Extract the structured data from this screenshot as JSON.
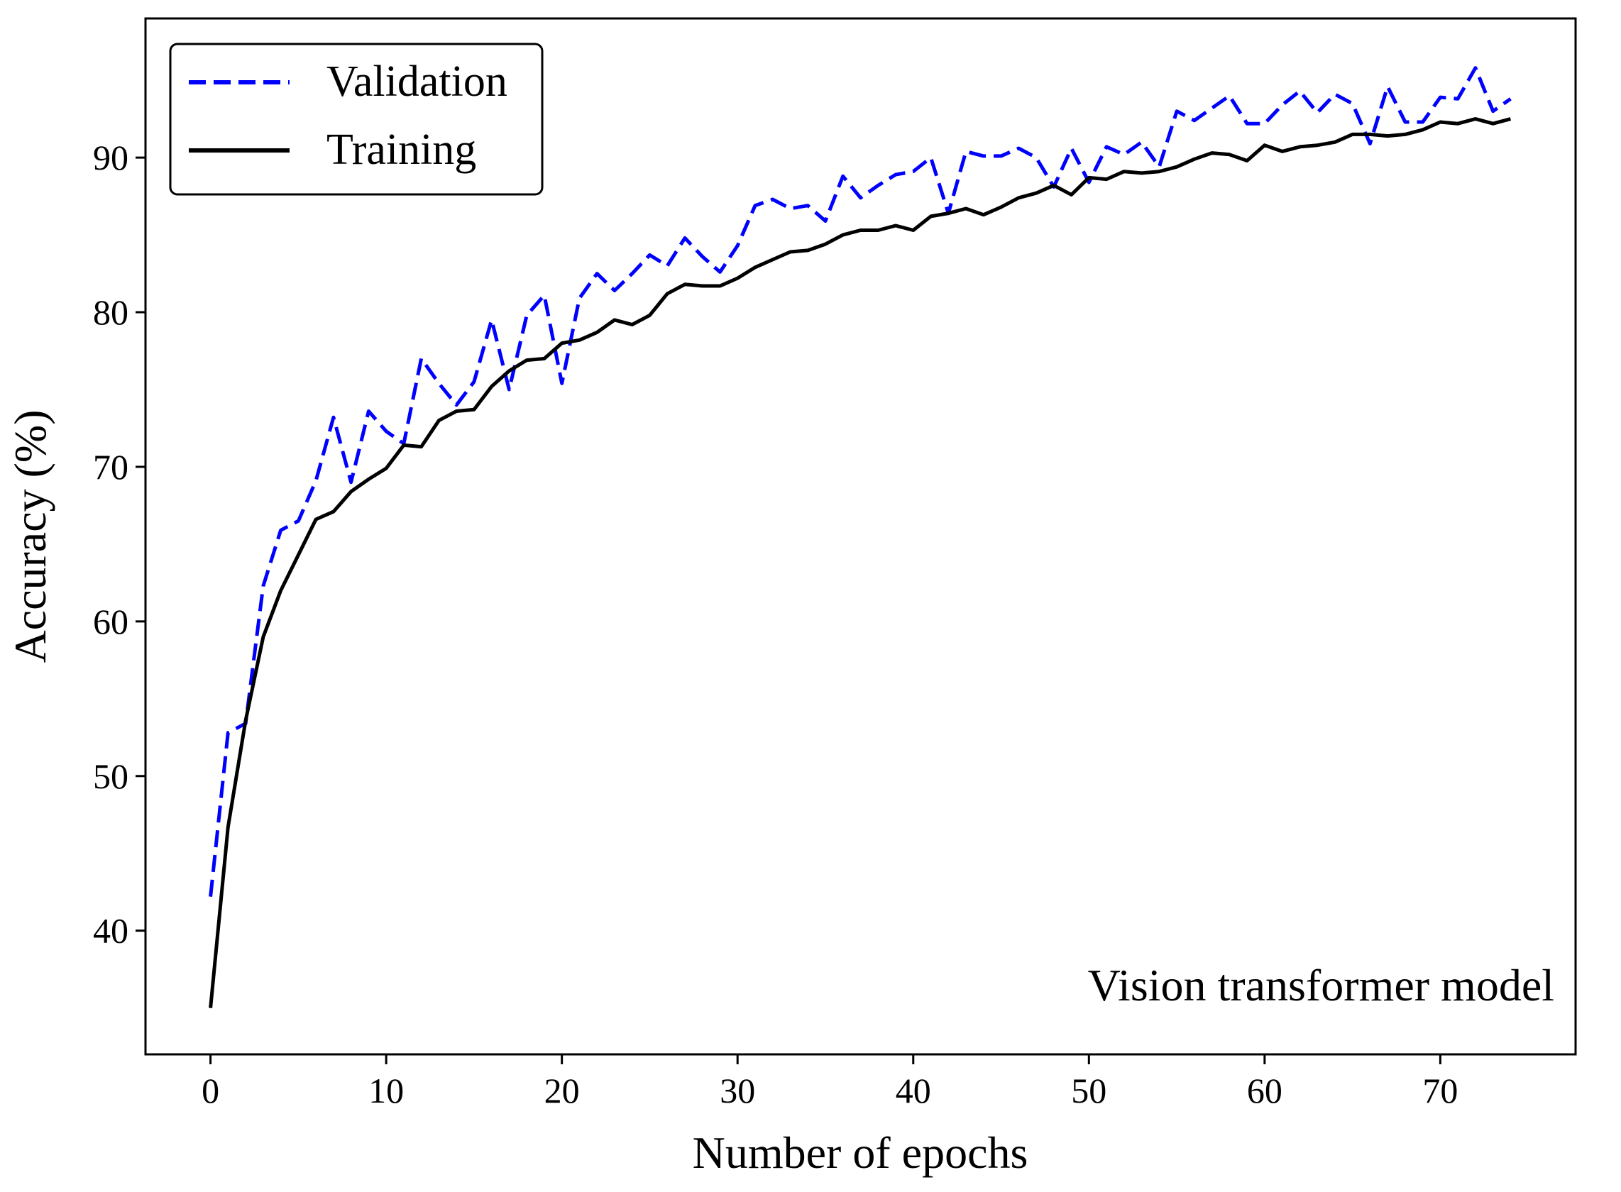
{
  "chart_data": {
    "type": "line",
    "title": "",
    "annotation": "Vision transformer model",
    "xlabel": "Number of epochs",
    "ylabel": "Accuracy (%)",
    "xlim": [
      -3.7,
      77.7
    ],
    "ylim": [
      32.0,
      99.0
    ],
    "xticks": [
      0,
      10,
      20,
      30,
      40,
      50,
      60,
      70
    ],
    "yticks": [
      40,
      50,
      60,
      70,
      80,
      90
    ],
    "grid": false,
    "legend_position": "top-left",
    "x": [
      0,
      1,
      2,
      3,
      4,
      5,
      6,
      7,
      8,
      9,
      10,
      11,
      12,
      13,
      14,
      15,
      16,
      17,
      18,
      19,
      20,
      21,
      22,
      23,
      24,
      25,
      26,
      27,
      28,
      29,
      30,
      31,
      32,
      33,
      34,
      35,
      36,
      37,
      38,
      39,
      40,
      41,
      42,
      43,
      44,
      45,
      46,
      47,
      48,
      49,
      50,
      51,
      52,
      53,
      54,
      55,
      56,
      57,
      58,
      59,
      60,
      61,
      62,
      63,
      64,
      65,
      66,
      67,
      68,
      69,
      70,
      71,
      72,
      73,
      74
    ],
    "series": [
      {
        "name": "Validation",
        "color": "#0000ff",
        "style": "dashed",
        "values": [
          42.2,
          52.8,
          53.4,
          62.3,
          65.9,
          66.5,
          69.1,
          73.2,
          69.0,
          73.6,
          72.3,
          71.5,
          77.0,
          75.4,
          74.0,
          75.5,
          79.5,
          75.0,
          79.8,
          81.1,
          75.4,
          80.9,
          82.5,
          81.4,
          82.5,
          83.7,
          83.0,
          84.8,
          83.6,
          82.6,
          84.3,
          86.9,
          87.3,
          86.7,
          86.9,
          85.9,
          88.8,
          87.4,
          88.2,
          88.9,
          89.1,
          90.0,
          86.4,
          90.4,
          90.1,
          90.1,
          90.6,
          90.0,
          88.1,
          90.6,
          88.4,
          90.7,
          90.2,
          91.0,
          89.4,
          93.0,
          92.4,
          93.2,
          94.0,
          92.2,
          92.2,
          93.4,
          94.3,
          92.9,
          94.1,
          93.5,
          90.9,
          94.6,
          92.3,
          92.3,
          93.9,
          93.8,
          95.8,
          93.0,
          93.8
        ]
      },
      {
        "name": "Training",
        "color": "#000000",
        "style": "solid",
        "values": [
          35.0,
          46.7,
          53.6,
          59.0,
          62.0,
          64.3,
          66.6,
          67.1,
          68.4,
          69.2,
          69.9,
          71.4,
          71.3,
          73.0,
          73.6,
          73.7,
          75.2,
          76.2,
          76.9,
          77.0,
          78.0,
          78.2,
          78.7,
          79.5,
          79.2,
          79.8,
          81.2,
          81.8,
          81.7,
          81.7,
          82.2,
          82.9,
          83.4,
          83.9,
          84.0,
          84.4,
          85.0,
          85.3,
          85.3,
          85.6,
          85.3,
          86.2,
          86.4,
          86.7,
          86.3,
          86.8,
          87.4,
          87.7,
          88.2,
          87.6,
          88.7,
          88.6,
          89.1,
          89.0,
          89.1,
          89.4,
          89.9,
          90.3,
          90.2,
          89.8,
          90.8,
          90.4,
          90.7,
          90.8,
          91.0,
          91.5,
          91.5,
          91.4,
          91.5,
          91.8,
          92.3,
          92.2,
          92.5,
          92.2,
          92.5
        ]
      }
    ]
  }
}
